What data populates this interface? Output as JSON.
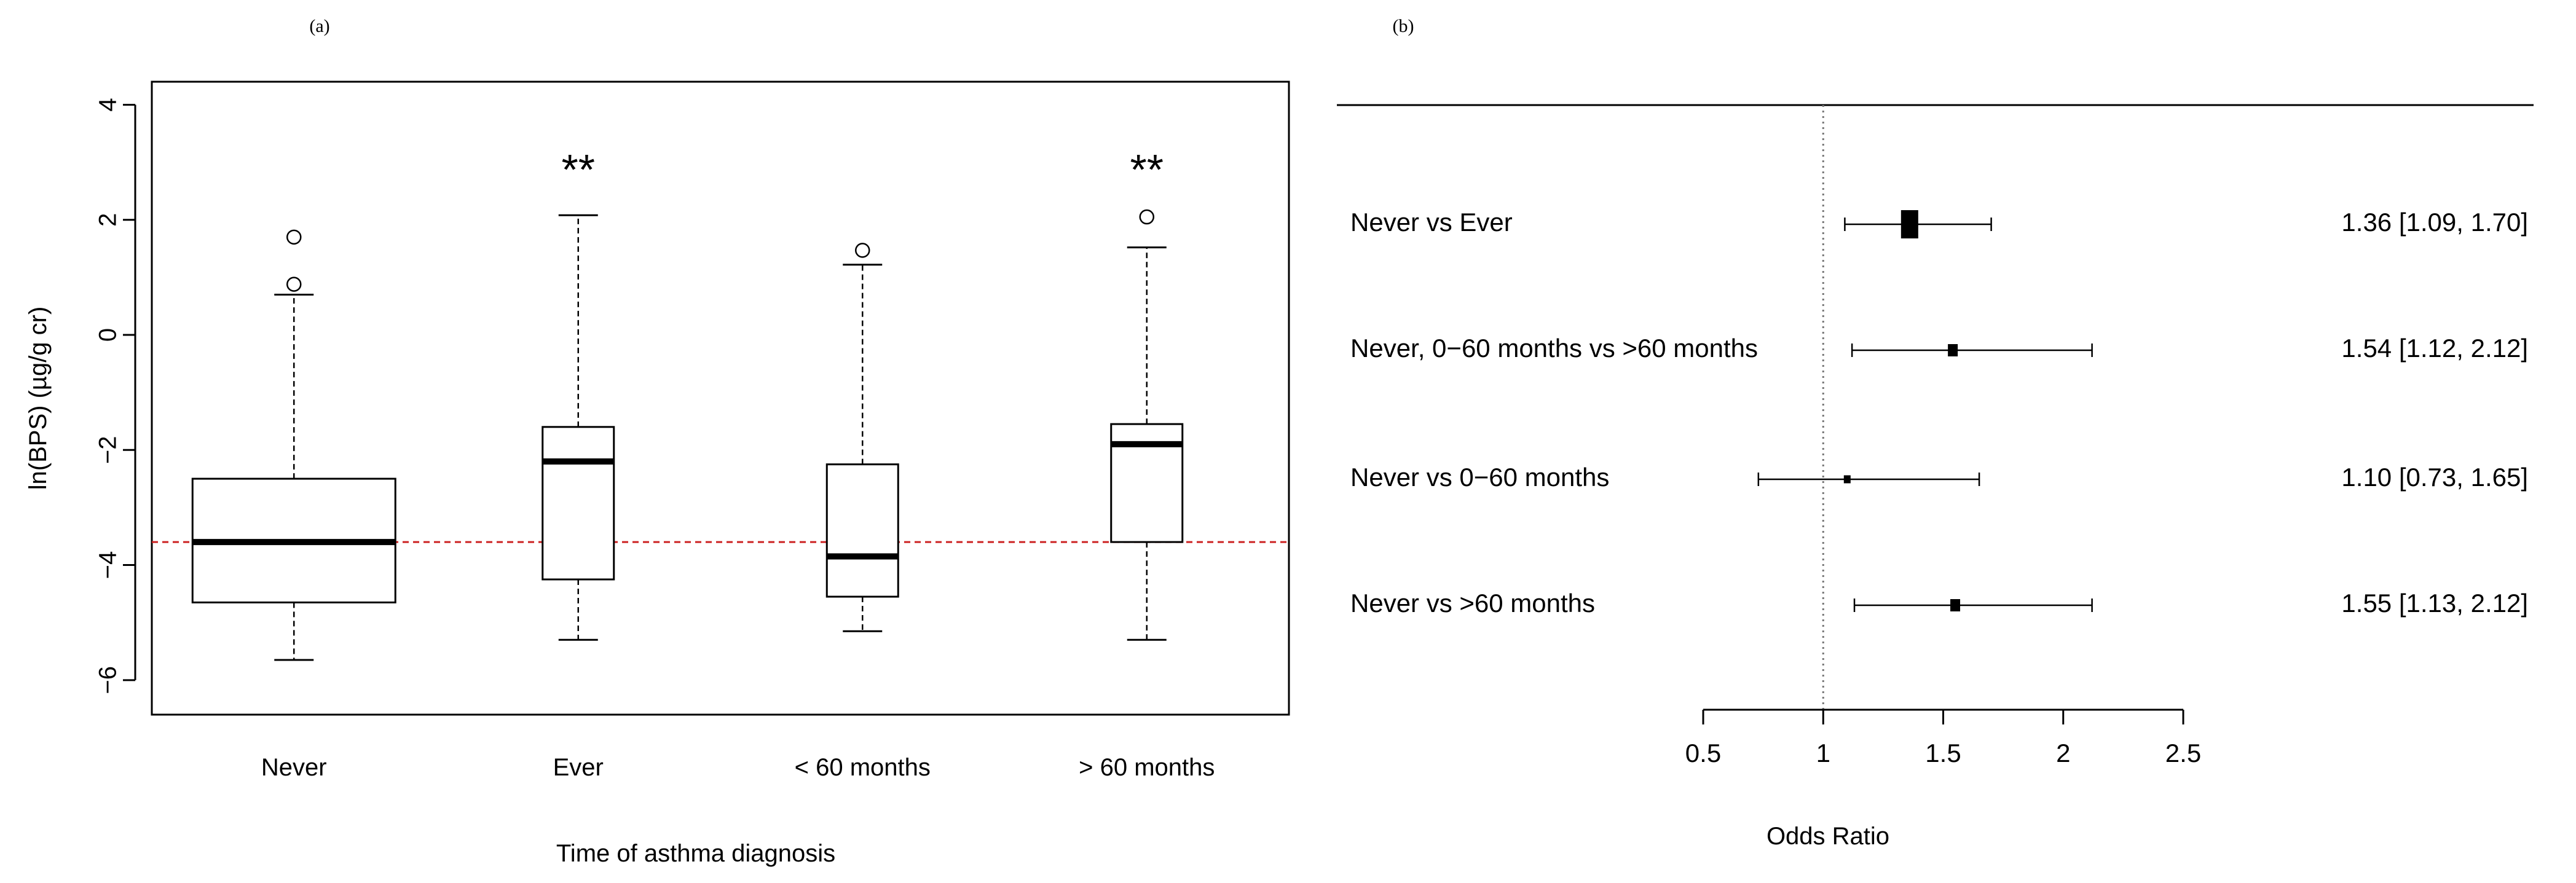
{
  "chart_data": [
    {
      "panel_label": "(a)",
      "type": "box",
      "xlabel": "Time of asthma diagnosis",
      "ylabel": "ln(BPS) (µg/g cr)",
      "ylim": [
        -6.6,
        4.4
      ],
      "yticks": [
        -6,
        -4,
        -2,
        0,
        2,
        4
      ],
      "ytick_labels": [
        "−6",
        "−4",
        "−2",
        "0",
        "2",
        "4"
      ],
      "reference_line": {
        "y": -3.6,
        "color": "#cc2222",
        "style": "dashed"
      },
      "groups": [
        {
          "label": "Never",
          "whisker_low": -5.65,
          "q1": -4.65,
          "median": -3.6,
          "q3": -2.5,
          "whisker_high": 0.7,
          "outliers": [
            0.88,
            1.7
          ],
          "annotation": ""
        },
        {
          "label": "Ever",
          "whisker_low": -5.3,
          "q1": -4.25,
          "median": -2.2,
          "q3": -1.6,
          "whisker_high": 2.08,
          "outliers": [],
          "annotation": "**"
        },
        {
          "label": "< 60 months",
          "whisker_low": -5.15,
          "q1": -4.55,
          "median": -3.85,
          "q3": -2.25,
          "whisker_high": 1.22,
          "outliers": [
            1.47
          ],
          "annotation": ""
        },
        {
          "label": "> 60 months",
          "whisker_low": -5.3,
          "q1": -3.6,
          "median": -1.9,
          "q3": -1.55,
          "whisker_high": 1.52,
          "outliers": [
            2.05
          ],
          "annotation": "**"
        }
      ]
    },
    {
      "panel_label": "(b)",
      "type": "forest",
      "xlabel": "Odds Ratio",
      "xlim": [
        0.5,
        2.5
      ],
      "xticks": [
        0.5,
        1,
        1.5,
        2,
        2.5
      ],
      "xtick_labels": [
        "0.5",
        "1",
        "1.5",
        "2",
        "2.5"
      ],
      "null_line": 1,
      "rows": [
        {
          "label": "Never vs Ever",
          "or": 1.36,
          "lower": 1.09,
          "upper": 1.7,
          "text": "1.36 [1.09, 1.70]",
          "weight": "large"
        },
        {
          "label": "Never, 0−60 months vs >60 months",
          "or": 1.54,
          "lower": 1.12,
          "upper": 2.12,
          "text": "1.54 [1.12, 2.12]",
          "weight": "small"
        },
        {
          "label": "Never vs 0−60 months",
          "or": 1.1,
          "lower": 0.73,
          "upper": 1.65,
          "text": "1.10 [0.73, 1.65]",
          "weight": "tiny"
        },
        {
          "label": "Never vs >60 months",
          "or": 1.55,
          "lower": 1.13,
          "upper": 2.12,
          "text": "1.55 [1.13, 2.12]",
          "weight": "small"
        }
      ]
    }
  ]
}
